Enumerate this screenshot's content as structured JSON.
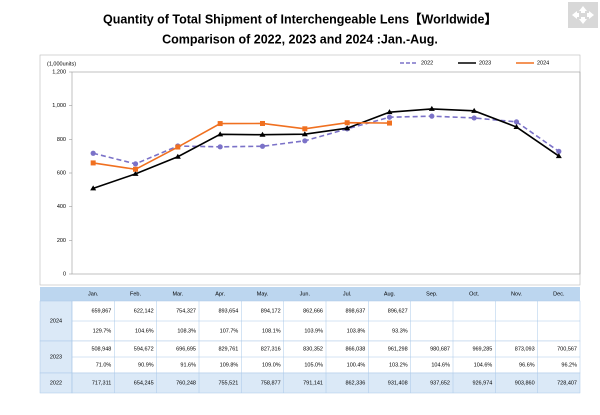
{
  "chart_data": {
    "type": "line",
    "title": "Quantity of Total Shipment of Interchengeable Lens【Worldwide】",
    "subtitle": "Comparison of 2022, 2023 and 2024 :Jan.-Aug.",
    "y_label": "(1,000units)",
    "categories": [
      "Jan.",
      "Feb.",
      "Mar.",
      "Apr.",
      "May.",
      "Jun.",
      "Jul.",
      "Aug.",
      "Sep.",
      "Oct.",
      "Nov.",
      "Dec."
    ],
    "ylim": [
      0,
      1200
    ],
    "yticks": [
      0,
      200,
      400,
      600,
      800,
      {
        "value": 1000,
        "label": "1,000"
      },
      {
        "value": 1200,
        "label": "1,200"
      }
    ],
    "grid": false,
    "legend": "top-right",
    "series": [
      {
        "name": "2024",
        "color": "#f07020",
        "marker": "square",
        "dash": false,
        "values": [
          659.867,
          622.142,
          754.327,
          893.654,
          894.172,
          862.666,
          898.637,
          896.627,
          null,
          null,
          null,
          null
        ],
        "value_labels": [
          "659,867",
          "622,142",
          "754,327",
          "893,654",
          "894,172",
          "862,666",
          "898,637",
          "896,627",
          null,
          null,
          null,
          null
        ],
        "yoy": [
          "129.7%",
          "104.6%",
          "108.3%",
          "107.7%",
          "108.1%",
          "103.9%",
          "103.8%",
          "93.3%",
          null,
          null,
          null,
          null
        ]
      },
      {
        "name": "2023",
        "color": "#000000",
        "marker": "triangle",
        "dash": false,
        "values": [
          508.948,
          594.672,
          696.695,
          829.761,
          827.316,
          830.352,
          866.038,
          961.298,
          980.687,
          969.285,
          873.093,
          700.567
        ],
        "value_labels": [
          "508,948",
          "594,672",
          "696,695",
          "829,761",
          "827,316",
          "830,352",
          "866,038",
          "961,298",
          "980,687",
          "969,285",
          "873,093",
          "700,567"
        ],
        "yoy": [
          "71.0%",
          "90.9%",
          "91.6%",
          "109.8%",
          "109.0%",
          "105.0%",
          "100.4%",
          "103.2%",
          "104.6%",
          "104.6%",
          "96.6%",
          "96.2%"
        ]
      },
      {
        "name": "2022",
        "color": "#7b72c8",
        "marker": "circle",
        "dash": true,
        "values": [
          717.311,
          654.245,
          760.248,
          755.521,
          758.877,
          791.141,
          862.336,
          931.408,
          937.652,
          926.974,
          903.86,
          728.407
        ],
        "value_labels": [
          "717,311",
          "654,245",
          "760,248",
          "755,521",
          "758,877",
          "791,141",
          "862,336",
          "931,408",
          "937,652",
          "926,974",
          "903,860",
          "728,407"
        ]
      }
    ]
  }
}
